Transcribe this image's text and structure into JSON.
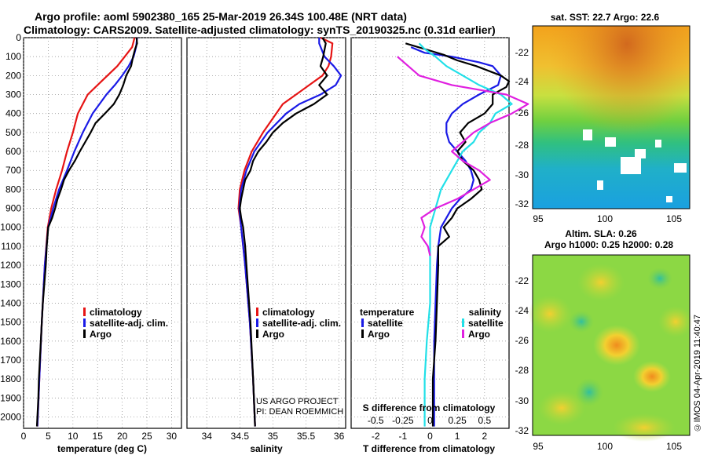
{
  "header": {
    "line1": "Argo profile: aoml 5902380_165 25-Mar-2019 26.34S 100.48E (NRT data)",
    "line2": "Climatology: CARS2009. Satellite-adjusted climatology: synTS_20190325.nc (0.31d earlier)"
  },
  "colors": {
    "climatology": "#e61414",
    "satellite": "#1a1ae6",
    "argo": "#000000",
    "sal_satellite": "#22e0e8",
    "sal_argo": "#e020e0"
  },
  "chart_data": [
    {
      "id": "temperature",
      "type": "line",
      "xlabel": "temperature (deg C)",
      "xlim": [
        0,
        32
      ],
      "xticks": [
        0,
        5,
        10,
        15,
        20,
        25,
        30
      ],
      "ylim": [
        2060,
        0
      ],
      "yticks": [
        0,
        100,
        200,
        300,
        400,
        500,
        600,
        700,
        800,
        900,
        1000,
        1100,
        1200,
        1300,
        1400,
        1500,
        1600,
        1700,
        1800,
        1900,
        2000
      ],
      "legend": [
        "climatology",
        "satellite-adj. clim.",
        "Argo"
      ],
      "series": [
        {
          "name": "climatology",
          "color": "#e61414",
          "pressure": [
            0,
            50,
            100,
            150,
            200,
            250,
            300,
            400,
            500,
            600,
            700,
            800,
            900,
            1000,
            1200,
            1500,
            1800,
            2050
          ],
          "values": [
            22.5,
            22.0,
            20.5,
            19.0,
            17.0,
            15.0,
            13.0,
            11.0,
            10.0,
            8.8,
            7.8,
            6.6,
            5.6,
            4.9,
            4.3,
            3.7,
            3.2,
            2.8
          ]
        },
        {
          "name": "satellite-adj. clim.",
          "color": "#1a1ae6",
          "pressure": [
            0,
            50,
            100,
            150,
            200,
            250,
            300,
            400,
            500,
            600,
            700,
            800,
            900,
            1000,
            1200,
            1500,
            1800,
            2050
          ],
          "values": [
            23.0,
            22.8,
            22.3,
            21.3,
            20.0,
            18.5,
            16.8,
            14.0,
            12.0,
            10.3,
            8.8,
            7.2,
            6.0,
            5.0,
            4.3,
            3.7,
            3.2,
            2.8
          ]
        },
        {
          "name": "Argo",
          "color": "#000000",
          "pressure": [
            0,
            30,
            60,
            100,
            150,
            200,
            250,
            300,
            350,
            400,
            450,
            500,
            550,
            600,
            650,
            700,
            750,
            800,
            850,
            900,
            950,
            1000,
            1100,
            1200,
            1300,
            1400,
            1500,
            1600,
            1700,
            1800,
            1900,
            2000,
            2050
          ],
          "values": [
            22.9,
            23.0,
            22.6,
            22.2,
            21.8,
            20.8,
            20.2,
            19.4,
            18.3,
            16.5,
            14.6,
            13.6,
            12.5,
            11.4,
            10.4,
            9.2,
            8.2,
            7.6,
            6.9,
            6.4,
            5.8,
            5.0,
            4.7,
            4.5,
            4.2,
            3.9,
            3.7,
            3.5,
            3.3,
            3.1,
            3.0,
            2.8,
            2.7
          ]
        }
      ]
    },
    {
      "id": "salinity",
      "type": "line",
      "xlabel": "salinity",
      "xlim": [
        33.7,
        36.1
      ],
      "xticks": [
        34,
        34.5,
        35,
        35.5,
        36
      ],
      "ylim": [
        2060,
        0
      ],
      "legend": [
        "climatology",
        "satellite-adj. clim.",
        "Argo"
      ],
      "credit_line1": "US ARGO PROJECT",
      "credit_line2": "PI: DEAN ROEMMICH",
      "series": [
        {
          "name": "climatology",
          "color": "#e61414",
          "pressure": [
            0,
            30,
            100,
            150,
            200,
            250,
            300,
            350,
            400,
            500,
            600,
            700,
            800,
            900,
            1000,
            1200,
            1500,
            1800,
            2050
          ],
          "values": [
            35.72,
            35.9,
            35.88,
            35.84,
            35.75,
            35.55,
            35.35,
            35.15,
            35.05,
            34.85,
            34.68,
            34.57,
            34.5,
            34.48,
            34.52,
            34.58,
            34.65,
            34.7,
            34.73
          ]
        },
        {
          "name": "satellite-adj. clim.",
          "color": "#1a1ae6",
          "pressure": [
            0,
            30,
            100,
            150,
            200,
            250,
            300,
            350,
            400,
            500,
            600,
            700,
            800,
            900,
            1000,
            1200,
            1500,
            1800,
            2050
          ],
          "values": [
            35.7,
            35.7,
            35.78,
            35.92,
            36.03,
            35.95,
            35.72,
            35.4,
            35.2,
            34.92,
            34.72,
            34.6,
            34.52,
            34.49,
            34.52,
            34.58,
            34.65,
            34.7,
            34.73
          ]
        },
        {
          "name": "Argo",
          "color": "#000000",
          "pressure": [
            0,
            30,
            100,
            150,
            200,
            250,
            300,
            350,
            400,
            450,
            500,
            550,
            600,
            650,
            700,
            750,
            800,
            850,
            900,
            950,
            1000,
            1100,
            1200,
            1300,
            1500,
            1800,
            2050
          ],
          "values": [
            35.75,
            35.8,
            35.76,
            35.72,
            35.82,
            35.7,
            35.82,
            35.62,
            35.35,
            35.15,
            35.0,
            34.9,
            34.78,
            34.7,
            34.66,
            34.58,
            34.55,
            34.52,
            34.5,
            34.52,
            34.55,
            34.58,
            34.6,
            34.62,
            34.66,
            34.7,
            34.73
          ]
        }
      ]
    },
    {
      "id": "difference",
      "type": "line",
      "xlabel": "T difference from climatology",
      "xlim": [
        -2.9,
        2.9
      ],
      "xticks": [
        -2,
        -1,
        0,
        1,
        2
      ],
      "top_xlabel": "S difference from climatology",
      "top_xticks": [
        -0.5,
        -0.25,
        0,
        0.25,
        0.5
      ],
      "ylim": [
        2060,
        0
      ],
      "legend_temperature_title": "temperature",
      "legend_salinity_title": "salinity",
      "legend_temperature": [
        "satellite",
        "Argo"
      ],
      "legend_salinity": [
        "satellite",
        "Argo"
      ],
      "series": [
        {
          "name": "temperature satellite",
          "color": "#1a1ae6",
          "pressure": [
            50,
            80,
            100,
            130,
            150,
            200,
            250,
            300,
            350,
            400,
            450,
            500,
            550,
            600,
            650,
            700,
            750,
            800,
            850,
            900,
            950,
            1000,
            1100,
            1200,
            1400,
            1600,
            1800,
            2050
          ],
          "values": [
            -0.7,
            -0.2,
            0.8,
            1.8,
            2.3,
            2.6,
            2.5,
            1.8,
            1.2,
            0.8,
            0.6,
            0.6,
            0.7,
            1.0,
            1.3,
            1.5,
            1.6,
            1.5,
            1.1,
            0.8,
            0.6,
            0.4,
            0.3,
            0.25,
            0.2,
            0.15,
            0.15,
            0.15
          ]
        },
        {
          "name": "temperature Argo",
          "color": "#000000",
          "pressure": [
            30,
            60,
            90,
            120,
            150,
            200,
            230,
            260,
            300,
            350,
            400,
            450,
            500,
            550,
            600,
            650,
            700,
            750,
            800,
            850,
            900,
            950,
            1000,
            1050,
            1100,
            1200,
            1400,
            1600,
            1800,
            2050
          ],
          "values": [
            -0.9,
            -0.2,
            0.5,
            1.0,
            1.7,
            2.6,
            2.9,
            2.8,
            2.3,
            2.3,
            2.0,
            1.4,
            1.1,
            1.3,
            1.0,
            1.2,
            1.6,
            1.8,
            1.9,
            1.5,
            1.0,
            0.8,
            0.5,
            0.7,
            0.3,
            0.3,
            0.25,
            0.2,
            0.1,
            0.1
          ]
        },
        {
          "name": "salinity satellite",
          "color": "#22e0e8",
          "pressure": [
            30,
            60,
            100,
            150,
            200,
            250,
            300,
            350,
            400,
            450,
            500,
            550,
            600,
            650,
            700,
            750,
            800,
            900,
            1000,
            1100,
            1200,
            1400,
            1600,
            1800,
            2050
          ],
          "values": [
            -0.1,
            -0.05,
            0.05,
            0.15,
            0.3,
            0.45,
            0.65,
            0.75,
            0.6,
            0.55,
            0.45,
            0.4,
            0.3,
            0.25,
            0.2,
            0.15,
            0.1,
            0.05,
            0.0,
            0.0,
            0.0,
            0.0,
            -0.03,
            -0.05,
            -0.05
          ]
        },
        {
          "name": "salinity Argo",
          "color": "#e020e0",
          "pressure": [
            100,
            150,
            200,
            250,
            300,
            350,
            400,
            450,
            500,
            550,
            600,
            650,
            700,
            750,
            800,
            850,
            900,
            950,
            1000,
            1050,
            1100,
            1150
          ],
          "values": [
            -0.3,
            -0.2,
            -0.1,
            0.2,
            0.7,
            0.9,
            0.75,
            0.55,
            0.4,
            0.3,
            0.2,
            0.3,
            0.45,
            0.55,
            0.4,
            0.25,
            0.05,
            -0.08,
            -0.05,
            -0.08,
            -0.02,
            0.0
          ]
        }
      ]
    }
  ],
  "maps": {
    "sst": {
      "title": "sat. SST: 22.7 Argo: 22.6",
      "xticks": [
        "95",
        "100",
        "105"
      ],
      "yticks": [
        "-22",
        "-24",
        "-26",
        "-28",
        "-30",
        "-32"
      ]
    },
    "sla": {
      "title_line1": "Altim. SLA: 0.26",
      "title_line2": "Argo h1000: 0.25 h2000: 0.28",
      "xticks": [
        "95",
        "100",
        "105"
      ],
      "yticks": [
        "-22",
        "-24",
        "-26",
        "-28",
        "-30",
        "-32"
      ]
    }
  },
  "timestamp": "©IMOS 04-Apr-2019 11:40:47"
}
